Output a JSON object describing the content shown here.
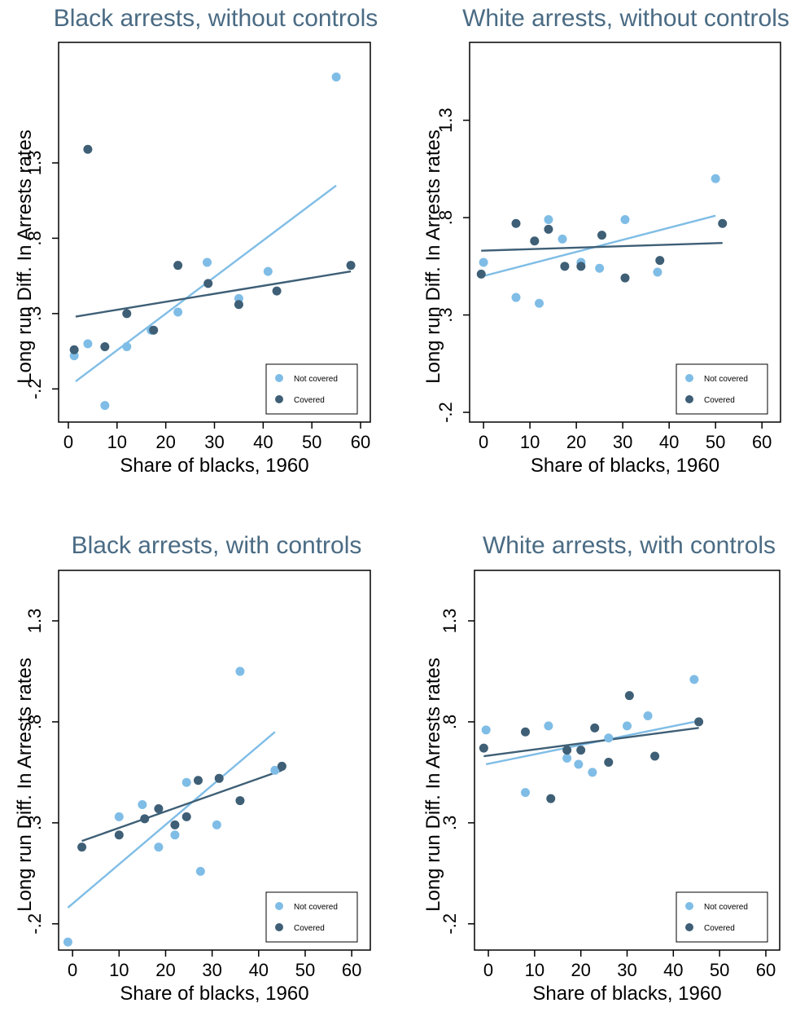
{
  "colors": {
    "not_covered": "#7fbde6",
    "covered": "#3e5f76",
    "title": "#4a6b84"
  },
  "legend": {
    "not_covered": "Not covered",
    "covered": "Covered",
    "placement": "bottom-right"
  },
  "chart_data": [
    {
      "type": "scatter",
      "title": "Black arrests, without controls",
      "xlabel": "Share of blacks, 1960",
      "ylabel": "Long run Diff. In Arrests rates",
      "xlim": [
        -2,
        62
      ],
      "ylim": [
        -0.42,
        2.1
      ],
      "x_ticks": [
        0,
        10,
        20,
        30,
        40,
        50,
        60
      ],
      "x_tick_labels": [
        "0",
        "10",
        "20",
        "30",
        "40",
        "50",
        "60"
      ],
      "y_ticks": [
        -0.2,
        0.3,
        0.8,
        1.3
      ],
      "y_tick_labels": [
        "-.2",
        ".3",
        ".8",
        "1.3"
      ],
      "grid": false,
      "series": [
        {
          "name": "Not covered",
          "color_key": "not_covered",
          "points": [
            [
              1.2,
              0.02
            ],
            [
              4,
              0.1
            ],
            [
              7.5,
              -0.31
            ],
            [
              12,
              0.08
            ],
            [
              17,
              0.19
            ],
            [
              22.5,
              0.31
            ],
            [
              28.5,
              0.64
            ],
            [
              35,
              0.4
            ],
            [
              41,
              0.58
            ],
            [
              55,
              1.87
            ]
          ],
          "fit": [
            [
              1.5,
              -0.15
            ],
            [
              55,
              1.15
            ]
          ]
        },
        {
          "name": "Covered",
          "color_key": "covered",
          "points": [
            [
              1.2,
              0.06
            ],
            [
              4,
              1.39
            ],
            [
              7.5,
              0.08
            ],
            [
              12,
              0.3
            ],
            [
              17.5,
              0.19
            ],
            [
              22.5,
              0.62
            ],
            [
              28.7,
              0.5
            ],
            [
              35,
              0.36
            ],
            [
              42.8,
              0.45
            ],
            [
              58,
              0.62
            ]
          ],
          "fit": [
            [
              1.5,
              0.28
            ],
            [
              58,
              0.58
            ]
          ]
        }
      ]
    },
    {
      "type": "scatter",
      "title": "White arrests, without controls",
      "xlabel": "Share of blacks, 1960",
      "ylabel": "Long run Diff. In Arrests rates",
      "xlim": [
        -3,
        64
      ],
      "ylim": [
        -0.25,
        1.7
      ],
      "x_ticks": [
        0,
        10,
        20,
        30,
        40,
        50,
        60
      ],
      "x_tick_labels": [
        "0",
        "10",
        "20",
        "30",
        "40",
        "50",
        "60"
      ],
      "y_ticks": [
        -0.2,
        0.3,
        0.8,
        1.3
      ],
      "y_tick_labels": [
        "-.2",
        ".3",
        ".8",
        "1.3"
      ],
      "grid": false,
      "series": [
        {
          "name": "Not covered",
          "color_key": "not_covered",
          "points": [
            [
              0,
              0.57
            ],
            [
              7,
              0.39
            ],
            [
              12,
              0.36
            ],
            [
              14,
              0.79
            ],
            [
              17,
              0.69
            ],
            [
              21,
              0.57
            ],
            [
              25,
              0.54
            ],
            [
              30.5,
              0.79
            ],
            [
              37.5,
              0.52
            ],
            [
              50,
              1.0
            ]
          ],
          "fit": [
            [
              0,
              0.5
            ],
            [
              50,
              0.81
            ]
          ]
        },
        {
          "name": "Covered",
          "color_key": "covered",
          "points": [
            [
              -0.5,
              0.51
            ],
            [
              7,
              0.77
            ],
            [
              11,
              0.68
            ],
            [
              14,
              0.74
            ],
            [
              17.5,
              0.55
            ],
            [
              21,
              0.55
            ],
            [
              25.5,
              0.71
            ],
            [
              30.5,
              0.49
            ],
            [
              38,
              0.58
            ],
            [
              51.5,
              0.77
            ]
          ],
          "fit": [
            [
              -0.5,
              0.63
            ],
            [
              51.5,
              0.67
            ]
          ]
        }
      ]
    },
    {
      "type": "scatter",
      "title": "Black arrests, with controls",
      "xlabel": "Share of blacks, 1960",
      "ylabel": "Long run Diff.  In Arrests rates",
      "xlim": [
        -3,
        64
      ],
      "ylim": [
        -0.33,
        1.55
      ],
      "x_ticks": [
        0,
        10,
        20,
        30,
        40,
        50,
        60
      ],
      "x_tick_labels": [
        "0",
        "10",
        "20",
        "30",
        "40",
        "50",
        "60"
      ],
      "y_ticks": [
        -0.2,
        0.3,
        0.8,
        1.3
      ],
      "y_tick_labels": [
        "-.2",
        ".3",
        ".8",
        "1.3"
      ],
      "grid": false,
      "series": [
        {
          "name": "Not covered",
          "color_key": "not_covered",
          "points": [
            [
              -1,
              -0.29
            ],
            [
              10,
              0.33
            ],
            [
              15,
              0.39
            ],
            [
              18.5,
              0.18
            ],
            [
              22,
              0.24
            ],
            [
              24.5,
              0.5
            ],
            [
              27.5,
              0.06
            ],
            [
              31,
              0.29
            ],
            [
              36,
              1.05
            ],
            [
              43.5,
              0.56
            ]
          ],
          "fit": [
            [
              -1,
              -0.12
            ],
            [
              43.5,
              0.75
            ]
          ]
        },
        {
          "name": "Covered",
          "color_key": "covered",
          "points": [
            [
              2,
              0.18
            ],
            [
              10,
              0.24
            ],
            [
              15.5,
              0.32
            ],
            [
              18.5,
              0.37
            ],
            [
              22,
              0.29
            ],
            [
              24.5,
              0.33
            ],
            [
              27,
              0.51
            ],
            [
              31.5,
              0.52
            ],
            [
              36,
              0.41
            ],
            [
              45,
              0.58
            ]
          ],
          "fit": [
            [
              2,
              0.21
            ],
            [
              45,
              0.56
            ]
          ]
        }
      ]
    },
    {
      "type": "scatter",
      "title": "White arrests, with controls",
      "xlabel": "Share of blacks, 1960",
      "ylabel": "Long run Diff. In Arrests rates",
      "xlim": [
        -3,
        63
      ],
      "ylim": [
        -0.33,
        1.55
      ],
      "x_ticks": [
        0,
        10,
        20,
        30,
        40,
        50,
        60
      ],
      "x_tick_labels": [
        "0",
        "10",
        "20",
        "30",
        "40",
        "50",
        "60"
      ],
      "y_ticks": [
        -0.2,
        0.3,
        0.8,
        1.3
      ],
      "y_tick_labels": [
        "-.2",
        ".3",
        ".8",
        "1.3"
      ],
      "grid": false,
      "series": [
        {
          "name": "Not covered",
          "color_key": "not_covered",
          "points": [
            [
              -0.5,
              0.76
            ],
            [
              8,
              0.45
            ],
            [
              13,
              0.78
            ],
            [
              17,
              0.62
            ],
            [
              19.5,
              0.59
            ],
            [
              22.5,
              0.55
            ],
            [
              26,
              0.72
            ],
            [
              30,
              0.78
            ],
            [
              34.5,
              0.83
            ],
            [
              44.5,
              1.01
            ]
          ],
          "fit": [
            [
              -0.5,
              0.59
            ],
            [
              44.5,
              0.8
            ]
          ]
        },
        {
          "name": "Covered",
          "color_key": "covered",
          "points": [
            [
              -1,
              0.67
            ],
            [
              8,
              0.75
            ],
            [
              13.5,
              0.42
            ],
            [
              17,
              0.66
            ],
            [
              20,
              0.66
            ],
            [
              23,
              0.77
            ],
            [
              26,
              0.6
            ],
            [
              30.5,
              0.93
            ],
            [
              36,
              0.63
            ],
            [
              45.5,
              0.8
            ]
          ],
          "fit": [
            [
              -1,
              0.63
            ],
            [
              45.5,
              0.77
            ]
          ]
        }
      ]
    }
  ]
}
